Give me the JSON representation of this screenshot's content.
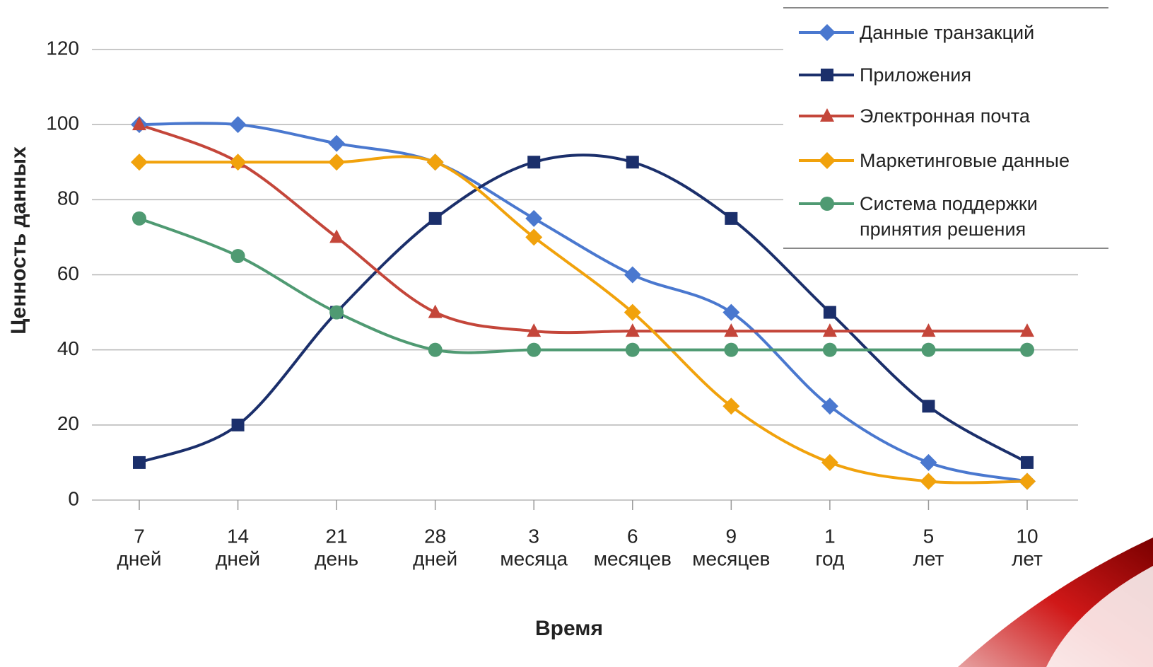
{
  "chart_data": {
    "type": "line",
    "x_label": "Время",
    "y_label": "Ценность данных",
    "categories": [
      [
        "7",
        "дней"
      ],
      [
        "14",
        "дней"
      ],
      [
        "21",
        "день"
      ],
      [
        "28",
        "дней"
      ],
      [
        "3",
        "месяца"
      ],
      [
        "6",
        "месяцев"
      ],
      [
        "9",
        "месяцев"
      ],
      [
        "1",
        "год"
      ],
      [
        "5",
        "лет"
      ],
      [
        "10",
        "лет"
      ]
    ],
    "ylim": [
      0,
      120
    ],
    "yticks": [
      0,
      20,
      40,
      60,
      80,
      100,
      120
    ],
    "grid": true,
    "smooth": true,
    "legend": "top-right",
    "series": [
      {
        "name": "Данные транзакций",
        "color": "#4a78cf",
        "marker": "diamond",
        "values": [
          100,
          100,
          95,
          90,
          75,
          60,
          50,
          25,
          10,
          5
        ]
      },
      {
        "name": "Приложения",
        "color": "#1b2f6b",
        "marker": "square",
        "values": [
          10,
          20,
          50,
          75,
          90,
          90,
          75,
          50,
          25,
          10
        ]
      },
      {
        "name": "Электронная почта",
        "color": "#c4463a",
        "marker": "triangle",
        "values": [
          100,
          90,
          70,
          50,
          45,
          45,
          45,
          45,
          45,
          45
        ]
      },
      {
        "name": "Маркетинговые данные",
        "color": "#f1a20c",
        "marker": "diamond",
        "values": [
          90,
          90,
          90,
          90,
          70,
          50,
          25,
          10,
          5,
          5
        ]
      },
      {
        "name": "Система поддержки принятия решения",
        "color": "#4f9a72",
        "marker": "circle",
        "values": [
          75,
          65,
          50,
          40,
          40,
          40,
          40,
          40,
          40,
          40
        ]
      }
    ]
  }
}
